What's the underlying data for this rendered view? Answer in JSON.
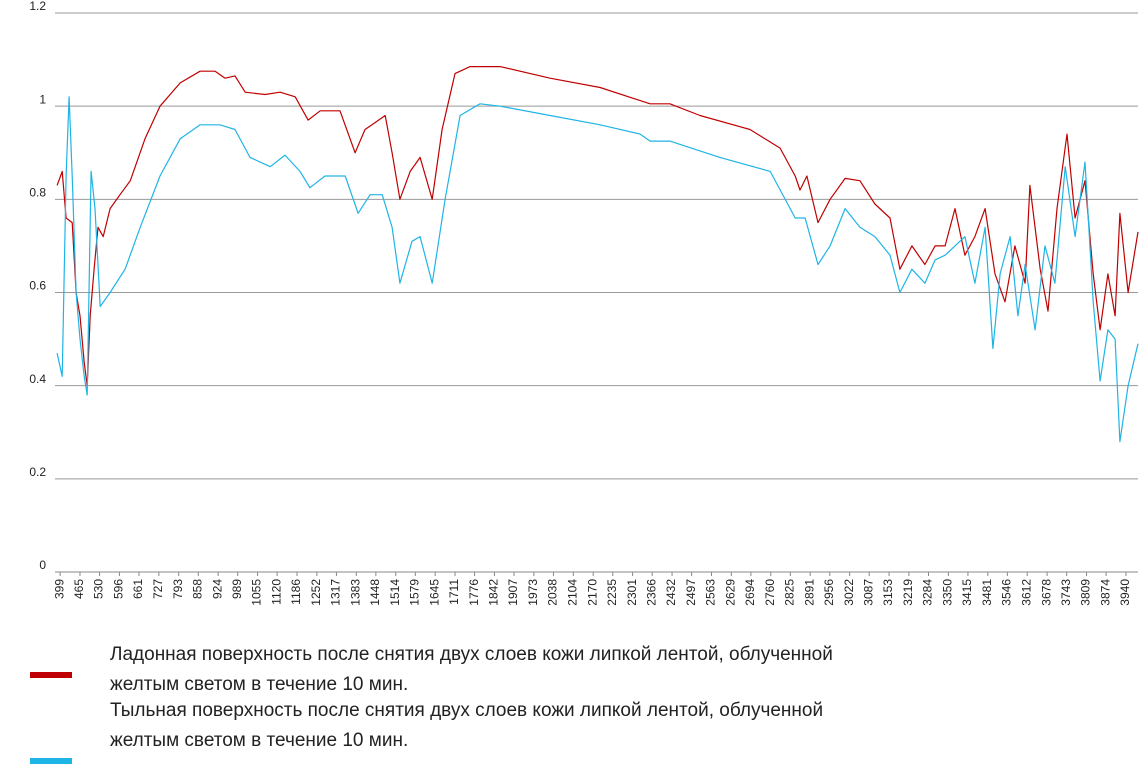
{
  "chart_data": {
    "type": "line",
    "xlim": [
      382,
      3980
    ],
    "xticks": [
      399,
      465,
      530,
      596,
      661,
      727,
      793,
      858,
      924,
      989,
      1055,
      1120,
      1186,
      1252,
      1317,
      1383,
      1448,
      1514,
      1579,
      1645,
      1711,
      1776,
      1842,
      1907,
      1973,
      2038,
      2104,
      2170,
      2235,
      2301,
      2366,
      2432,
      2497,
      2563,
      2629,
      2694,
      2760,
      2825,
      2891,
      2956,
      3022,
      3087,
      3153,
      3219,
      3284,
      3350,
      3415,
      3481,
      3546,
      3612,
      3678,
      3743,
      3809,
      3874,
      3940
    ],
    "ylim": [
      0,
      1.2
    ],
    "yticks": [
      0,
      0.2,
      0.4,
      0.6,
      0.8,
      1,
      1.2
    ],
    "grid": true,
    "series": [
      {
        "name": "Ладонная поверхность после снятия двух слоев кожи липкой лентой, облученной желтым светом в течение 10 мин.",
        "color": "#c00000",
        "x": [
          389,
          406,
          419,
          439,
          452,
          465,
          479,
          489,
          499,
          512,
          525,
          542,
          565,
          598,
          632,
          681,
          731,
          798,
          864,
          914,
          947,
          980,
          1014,
          1080,
          1130,
          1180,
          1223,
          1263,
          1329,
          1379,
          1412,
          1435,
          1479,
          1502,
          1528,
          1562,
          1595,
          1635,
          1668,
          1711,
          1761,
          1861,
          2027,
          2193,
          2359,
          2425,
          2525,
          2691,
          2791,
          2841,
          2857,
          2880,
          2917,
          2957,
          3007,
          3056,
          3106,
          3156,
          3189,
          3229,
          3272,
          3306,
          3339,
          3372,
          3405,
          3438,
          3472,
          3505,
          3538,
          3571,
          3605,
          3621,
          3655,
          3681,
          3711,
          3744,
          3771,
          3804,
          3831,
          3854,
          3880,
          3904,
          3920,
          3947,
          3980
        ],
        "values": [
          0.83,
          0.86,
          0.76,
          0.75,
          0.6,
          0.55,
          0.45,
          0.4,
          0.55,
          0.65,
          0.74,
          0.72,
          0.78,
          0.81,
          0.84,
          0.93,
          1.0,
          1.05,
          1.075,
          1.075,
          1.06,
          1.065,
          1.03,
          1.025,
          1.03,
          1.02,
          0.97,
          0.99,
          0.99,
          0.9,
          0.95,
          0.96,
          0.98,
          0.9,
          0.8,
          0.86,
          0.89,
          0.8,
          0.95,
          1.07,
          1.085,
          1.085,
          1.06,
          1.04,
          1.005,
          1.005,
          0.98,
          0.95,
          0.91,
          0.85,
          0.82,
          0.85,
          0.75,
          0.8,
          0.845,
          0.84,
          0.79,
          0.76,
          0.65,
          0.7,
          0.66,
          0.7,
          0.7,
          0.78,
          0.68,
          0.72,
          0.78,
          0.64,
          0.58,
          0.7,
          0.62,
          0.83,
          0.65,
          0.56,
          0.78,
          0.94,
          0.76,
          0.84,
          0.64,
          0.52,
          0.64,
          0.55,
          0.77,
          0.6,
          0.73
        ]
      },
      {
        "name": "Тыльная поверхность после снятия двух слоев кожи липкой лентой, облученной желтым светом в течение 10 мин.",
        "color": "#1fb4e6",
        "x": [
          389,
          406,
          419,
          429,
          439,
          452,
          465,
          479,
          489,
          502,
          515,
          532,
          565,
          615,
          665,
          731,
          798,
          864,
          930,
          980,
          1030,
          1097,
          1146,
          1196,
          1229,
          1279,
          1346,
          1389,
          1429,
          1469,
          1502,
          1528,
          1568,
          1595,
          1635,
          1678,
          1728,
          1794,
          1861,
          2027,
          2193,
          2326,
          2359,
          2425,
          2591,
          2758,
          2841,
          2874,
          2917,
          2957,
          3007,
          3056,
          3106,
          3156,
          3189,
          3229,
          3272,
          3306,
          3339,
          3372,
          3405,
          3438,
          3472,
          3498,
          3522,
          3555,
          3581,
          3605,
          3638,
          3671,
          3704,
          3738,
          3771,
          3804,
          3831,
          3854,
          3880,
          3904,
          3920,
          3947,
          3980
        ],
        "values": [
          0.47,
          0.42,
          0.85,
          1.02,
          0.85,
          0.6,
          0.5,
          0.42,
          0.38,
          0.86,
          0.78,
          0.57,
          0.6,
          0.65,
          0.74,
          0.85,
          0.93,
          0.96,
          0.96,
          0.95,
          0.89,
          0.87,
          0.895,
          0.86,
          0.825,
          0.85,
          0.85,
          0.77,
          0.81,
          0.81,
          0.74,
          0.62,
          0.71,
          0.72,
          0.62,
          0.8,
          0.98,
          1.005,
          1.0,
          0.98,
          0.96,
          0.94,
          0.925,
          0.925,
          0.89,
          0.86,
          0.76,
          0.76,
          0.66,
          0.7,
          0.78,
          0.74,
          0.72,
          0.68,
          0.6,
          0.65,
          0.62,
          0.67,
          0.68,
          0.7,
          0.72,
          0.62,
          0.74,
          0.48,
          0.64,
          0.72,
          0.55,
          0.66,
          0.52,
          0.7,
          0.62,
          0.87,
          0.72,
          0.88,
          0.58,
          0.41,
          0.52,
          0.5,
          0.28,
          0.4,
          0.49
        ]
      }
    ]
  }
}
